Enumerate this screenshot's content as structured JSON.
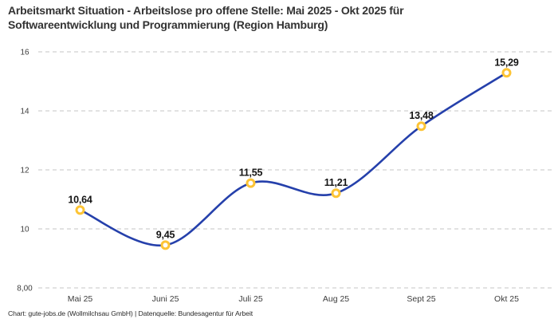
{
  "header": {
    "title_line1": "Arbeitsmarkt Situation - Arbeitslose pro offene Stelle: Mai 2025 - Okt 2025 für",
    "title_line2": "Softwareentwicklung und Programmierung (Region Hamburg)"
  },
  "chart_data": {
    "type": "line",
    "title": "Arbeitsmarkt Situation - Arbeitslose pro offene Stelle: Mai 2025 - Okt 2025 für Softwareentwicklung und Programmierung (Region Hamburg)",
    "categories": [
      "Mai 25",
      "Juni 25",
      "Juli 25",
      "Aug 25",
      "Sept 25",
      "Okt 25"
    ],
    "values": [
      10.64,
      9.45,
      11.55,
      11.21,
      13.48,
      15.29
    ],
    "value_labels": [
      "10,64",
      "9,45",
      "11,55",
      "11,21",
      "13,48",
      "15,29"
    ],
    "y_ticks": [
      {
        "value": 16,
        "label": "16"
      },
      {
        "value": 14,
        "label": "14"
      },
      {
        "value": 12,
        "label": "12"
      },
      {
        "value": 10,
        "label": "10"
      },
      {
        "value": 8,
        "label": "8,00"
      }
    ],
    "ylim": [
      8,
      16.5
    ],
    "xlabel": "",
    "ylabel": "",
    "grid": "horizontal-dashed",
    "legend": "none",
    "curve": "smooth",
    "colors": {
      "line": "#2540ab",
      "marker_ring": "#fdc435",
      "marker_fill": "#ffffff",
      "gridline": "#c6c6c6",
      "axis_label": "#3d3d3d",
      "value_label": "#141414"
    }
  },
  "footer": {
    "credit": "Chart: gute-jobs.de (Wollmilchsau GmbH) | Datenquelle: Bundesagentur für Arbeit"
  }
}
